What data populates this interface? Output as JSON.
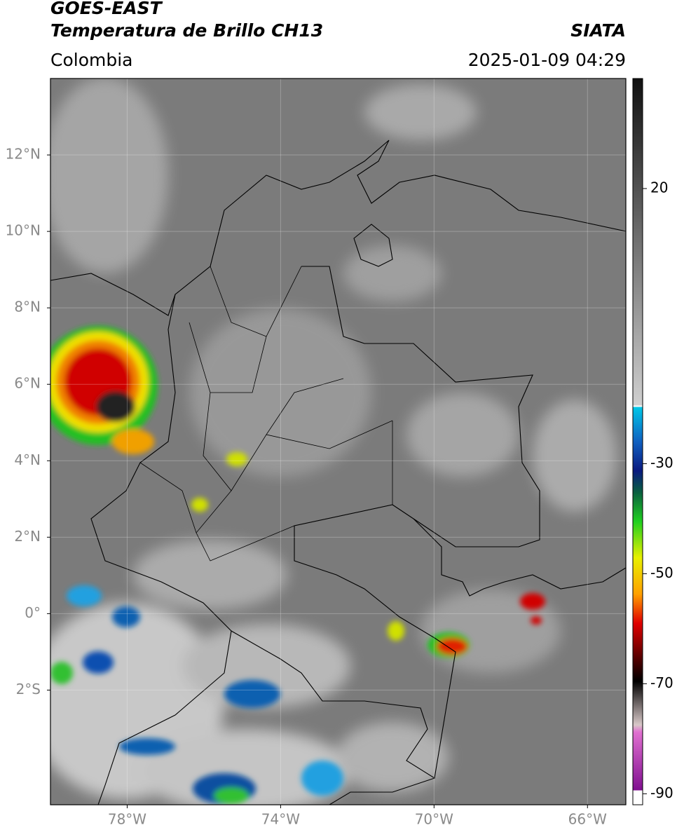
{
  "header": {
    "title": "GOES-EAST",
    "subtitle": "Temperatura de Brillo CH13",
    "source": "SIATA",
    "region": "Colombia",
    "datetime": "2025-01-09 04:29"
  },
  "map": {
    "lonlim": [
      -80,
      -65
    ],
    "latlim": [
      -5,
      14
    ],
    "lon_ticks": [
      {
        "value": -78,
        "label": "78°W"
      },
      {
        "value": -74,
        "label": "74°W"
      },
      {
        "value": -70,
        "label": "70°W"
      },
      {
        "value": -66,
        "label": "66°W"
      }
    ],
    "lat_ticks": [
      {
        "value": 12,
        "label": "12°N"
      },
      {
        "value": 10,
        "label": "10°N"
      },
      {
        "value": 8,
        "label": "8°N"
      },
      {
        "value": 6,
        "label": "6°N"
      },
      {
        "value": 4,
        "label": "4°N"
      },
      {
        "value": 2,
        "label": "2°N"
      },
      {
        "value": 0,
        "label": "0°"
      },
      {
        "value": -2,
        "label": "2°S"
      }
    ],
    "grid": true
  },
  "colorbar": {
    "lim": [
      -92,
      40
    ],
    "ticks": [
      20,
      -30,
      -50,
      -70,
      -90
    ]
  }
}
